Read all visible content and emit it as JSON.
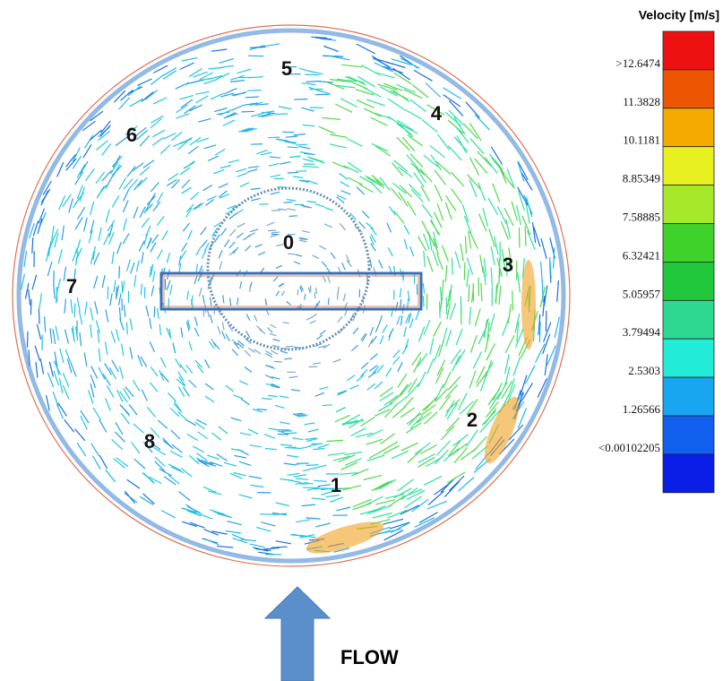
{
  "figure": {
    "legend": {
      "title": "Velocity [m/s]",
      "labels": [
        ">12.6474",
        "11.3828",
        "10.1181",
        "8.85349",
        "7.58885",
        "6.32421",
        "5.05957",
        "3.79494",
        "2.5303",
        "1.26566",
        "<0.00102205"
      ]
    },
    "regions": [
      "0",
      "1",
      "2",
      "3",
      "4",
      "5",
      "6",
      "7",
      "8"
    ],
    "flow_label": "FLOW"
  }
}
